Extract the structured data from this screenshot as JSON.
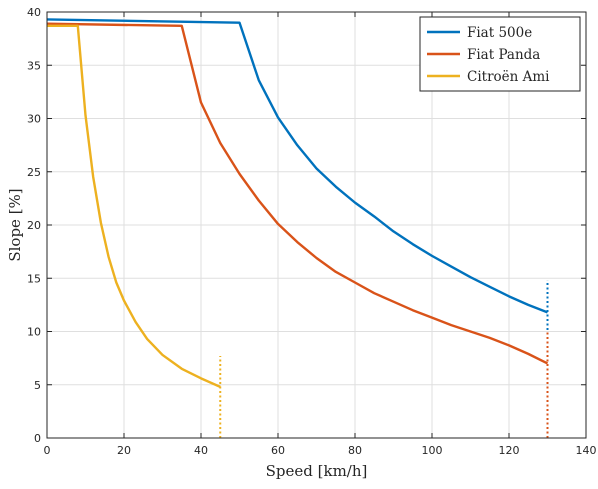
{
  "chart_data": {
    "type": "line",
    "title": "",
    "xlabel": "Speed [km/h]",
    "ylabel": "Slope [%]",
    "xlim": [
      0,
      140
    ],
    "ylim": [
      0,
      40
    ],
    "xticks": [
      0,
      20,
      40,
      60,
      80,
      100,
      120,
      140
    ],
    "yticks": [
      0,
      5,
      10,
      15,
      20,
      25,
      30,
      35,
      40
    ],
    "grid": true,
    "legend_position": "top-right",
    "series": [
      {
        "name": "Fiat 500e",
        "color": "#0072BD",
        "style": "solid",
        "x": [
          0,
          50,
          55,
          60,
          65,
          70,
          75,
          80,
          85,
          90,
          95,
          100,
          105,
          110,
          115,
          120,
          125,
          130
        ],
        "y": [
          39.3,
          39.0,
          33.6,
          30.1,
          27.5,
          25.3,
          23.6,
          22.1,
          20.8,
          19.4,
          18.2,
          17.1,
          16.1,
          15.1,
          14.2,
          13.3,
          12.5,
          11.8
        ]
      },
      {
        "name": "Fiat Panda",
        "color": "#D95319",
        "style": "solid",
        "x": [
          0,
          35,
          40,
          45,
          50,
          55,
          60,
          65,
          70,
          75,
          80,
          85,
          90,
          95,
          100,
          105,
          110,
          115,
          120,
          125,
          130
        ],
        "y": [
          38.9,
          38.7,
          31.5,
          27.7,
          24.8,
          22.3,
          20.1,
          18.4,
          16.9,
          15.6,
          14.6,
          13.6,
          12.8,
          12.0,
          11.3,
          10.6,
          10.0,
          9.4,
          8.7,
          7.9,
          7.0
        ]
      },
      {
        "name": "Citroën Ami",
        "color": "#EDB120",
        "style": "solid",
        "x": [
          0,
          8,
          10,
          12,
          14,
          16,
          18,
          20,
          23,
          26,
          30,
          35,
          40,
          45
        ],
        "y": [
          38.7,
          38.7,
          30.3,
          24.5,
          20.2,
          17.0,
          14.6,
          12.9,
          10.9,
          9.3,
          7.8,
          6.5,
          5.6,
          4.8
        ]
      }
    ],
    "markers": [
      {
        "series": "Fiat 500e",
        "color": "#0072BD",
        "style": "dotted",
        "x": 130,
        "y_from": 0,
        "y_to": 14.8
      },
      {
        "series": "Fiat Panda",
        "color": "#D95319",
        "style": "dotted",
        "x": 130,
        "y_from": 0,
        "y_to": 10.0
      },
      {
        "series": "Citroën Ami",
        "color": "#EDB120",
        "style": "dotted",
        "x": 45,
        "y_from": 0,
        "y_to": 7.7
      }
    ]
  }
}
